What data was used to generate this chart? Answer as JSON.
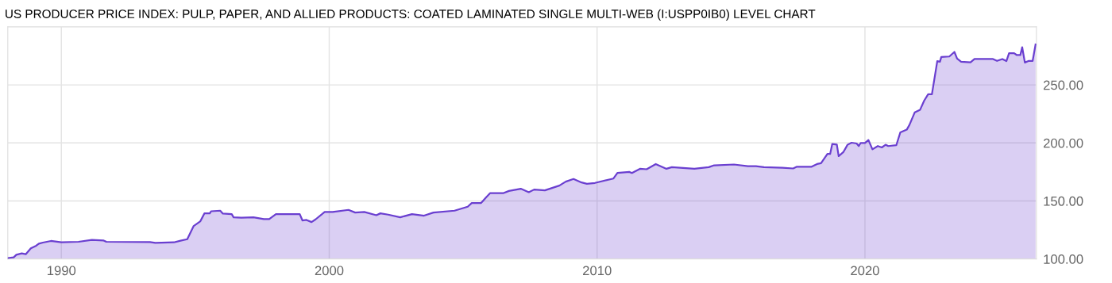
{
  "chart_data": {
    "type": "area",
    "title": "US PRODUCER PRICE INDEX: PULP, PAPER, AND ALLIED PRODUCTS: COATED LAMINATED SINGLE MULTI-WEB (I:USPP0IB0) LEVEL CHART",
    "x": [
      1988.0,
      1988.22,
      1988.32,
      1988.52,
      1988.67,
      1988.86,
      1989.06,
      1989.16,
      1989.31,
      1989.61,
      1990.0,
      1990.64,
      1991.14,
      1991.58,
      1991.68,
      1993.31,
      1993.51,
      1994.2,
      1994.45,
      1994.7,
      1994.94,
      1995.19,
      1995.34,
      1995.54,
      1995.59,
      1995.93,
      1996.03,
      1996.36,
      1996.43,
      1996.72,
      1997.17,
      1997.56,
      1997.76,
      1998.01,
      1998.9,
      1999.0,
      1999.15,
      1999.34,
      1999.49,
      1999.83,
      2000.13,
      2000.72,
      2000.97,
      2001.31,
      2001.76,
      2001.91,
      2002.2,
      2002.65,
      2003.09,
      2003.54,
      2003.89,
      2004.68,
      2005.17,
      2005.32,
      2005.67,
      2005.87,
      2006.01,
      2006.51,
      2006.71,
      2007.15,
      2007.45,
      2007.65,
      2008.05,
      2008.59,
      2008.83,
      2009.12,
      2009.42,
      2009.62,
      2009.92,
      2010.61,
      2010.76,
      2011.2,
      2011.3,
      2011.6,
      2011.85,
      2012.19,
      2012.59,
      2012.79,
      2013.63,
      2014.17,
      2014.37,
      2015.11,
      2015.63,
      2015.93,
      2016.23,
      2016.92,
      2017.32,
      2017.46,
      2018.01,
      2018.21,
      2018.36,
      2018.6,
      2018.7,
      2018.78,
      2018.95,
      2019.02,
      2019.2,
      2019.35,
      2019.5,
      2019.69,
      2019.77,
      2019.84,
      2020.0,
      2020.13,
      2020.28,
      2020.48,
      2020.63,
      2020.77,
      2020.87,
      2021.17,
      2021.32,
      2021.56,
      2021.66,
      2021.86,
      2022.06,
      2022.21,
      2022.36,
      2022.5,
      2022.7,
      2022.8,
      2022.85,
      2023.15,
      2023.34,
      2023.44,
      2023.59,
      2023.94,
      2024.09,
      2024.78,
      2024.93,
      2025.13,
      2025.28,
      2025.38,
      2025.57,
      2025.67,
      2025.8,
      2025.87,
      2025.97,
      2026.12,
      2026.26,
      2026.37
    ],
    "series": [
      {
        "color": "#6a3fd0",
        "values": [
          100.7,
          101.4,
          103.6,
          104.8,
          104.1,
          109.1,
          111.4,
          113.2,
          114.1,
          115.5,
          114.3,
          114.8,
          116.4,
          115.9,
          114.8,
          114.5,
          113.9,
          114.3,
          115.7,
          117.0,
          128.4,
          132.5,
          139.3,
          139.3,
          141.1,
          141.6,
          139.1,
          138.6,
          135.9,
          135.5,
          135.9,
          134.3,
          134.3,
          138.6,
          138.6,
          133.2,
          133.6,
          131.8,
          134.1,
          140.5,
          140.5,
          142.3,
          140.0,
          140.5,
          137.7,
          139.3,
          138.2,
          135.9,
          138.6,
          137.3,
          140.0,
          141.6,
          145.0,
          148.2,
          148.2,
          153.4,
          156.8,
          156.8,
          158.6,
          160.5,
          157.5,
          159.8,
          159.1,
          163.2,
          166.6,
          168.9,
          165.9,
          164.8,
          165.5,
          169.3,
          174.1,
          175.0,
          174.1,
          177.7,
          177.3,
          181.8,
          177.7,
          179.1,
          177.7,
          179.1,
          180.7,
          181.4,
          180.0,
          180.0,
          179.1,
          178.6,
          178.0,
          179.5,
          179.5,
          181.8,
          182.5,
          190.5,
          190.5,
          199.1,
          198.6,
          188.6,
          192.3,
          198.4,
          200.2,
          199.5,
          197.3,
          200.0,
          200.0,
          202.5,
          194.5,
          197.3,
          196.1,
          198.4,
          197.3,
          198.0,
          209.1,
          211.4,
          215.5,
          226.4,
          228.6,
          236.4,
          242.0,
          242.0,
          270.5,
          270.0,
          274.1,
          274.5,
          278.4,
          272.7,
          270.0,
          269.5,
          272.3,
          272.3,
          270.7,
          272.3,
          270.5,
          277.3,
          277.3,
          275.7,
          275.7,
          282.5,
          269.3,
          270.7,
          270.7,
          284.8
        ]
      }
    ],
    "xlim": [
      1988.0,
      2026.4
    ],
    "xticks": [
      1990,
      2000,
      2010,
      2020
    ],
    "ylim": [
      100,
      300
    ],
    "yticks": [
      {
        "value": 100,
        "label": "100.00"
      },
      {
        "value": 150,
        "label": "150.00"
      },
      {
        "value": 200,
        "label": "200.00"
      },
      {
        "value": 250,
        "label": "250.00"
      }
    ],
    "grid": true,
    "legend": false
  }
}
